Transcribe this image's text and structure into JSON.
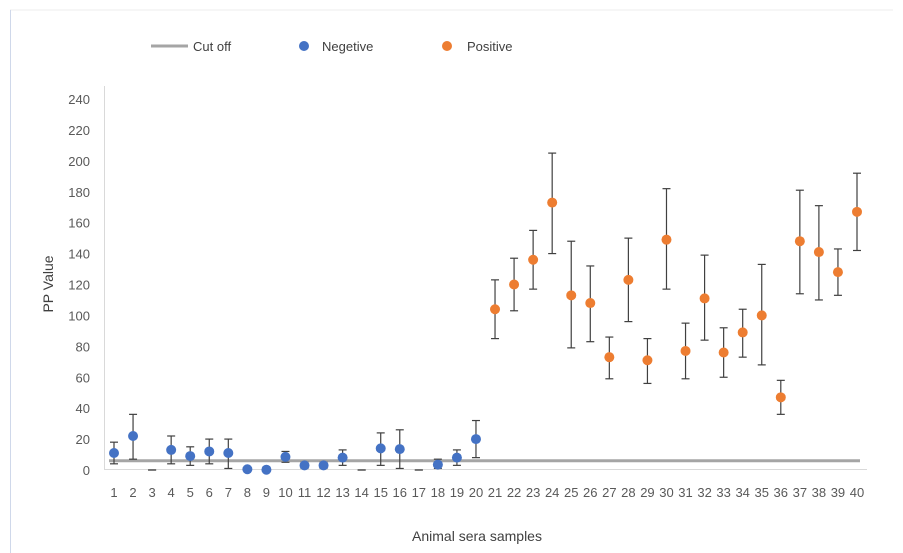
{
  "chart_data": {
    "type": "scatter",
    "xlabel": "Animal sera samples",
    "ylabel": "PP Value",
    "ylim": [
      0,
      240
    ],
    "y_ticks": [
      "0",
      "20",
      "40",
      "60",
      "80",
      "100",
      "120",
      "140",
      "160",
      "180",
      "200",
      "220",
      "240"
    ],
    "x_ticks": [
      "1",
      "2",
      "3",
      "4",
      "5",
      "6",
      "7",
      "8",
      "9",
      "10",
      "11",
      "12",
      "13",
      "14",
      "15",
      "16",
      "17",
      "18",
      "19",
      "20",
      "21",
      "22",
      "23",
      "24",
      "25",
      "26",
      "27",
      "28",
      "29",
      "30",
      "31",
      "32",
      "33",
      "34",
      "35",
      "36",
      "37",
      "38",
      "39",
      "40"
    ],
    "grid": false,
    "legend_position": "top",
    "legend": {
      "cutoff_label": "Cut off",
      "negative_label": "Negetive",
      "positive_label": "Positive"
    },
    "cutoff": {
      "value": 6,
      "color": "#a5a5a5"
    },
    "series": [
      {
        "name": "Negetive",
        "color": "#4472c4",
        "points": [
          {
            "x": 1,
            "y": 11,
            "lo": 4,
            "hi": 18
          },
          {
            "x": 2,
            "y": 22,
            "lo": 7,
            "hi": 36
          },
          {
            "x": 3,
            "y": 0,
            "lo": 0,
            "hi": 0
          },
          {
            "x": 4,
            "y": 13,
            "lo": 4,
            "hi": 22
          },
          {
            "x": 5,
            "y": 9,
            "lo": 3,
            "hi": 15
          },
          {
            "x": 6,
            "y": 12,
            "lo": 4,
            "hi": 20
          },
          {
            "x": 7,
            "y": 11,
            "lo": 1,
            "hi": 20
          },
          {
            "x": 8,
            "y": 0.5,
            "lo": 0,
            "hi": 1
          },
          {
            "x": 9,
            "y": 0.2,
            "lo": 0,
            "hi": 0.5
          },
          {
            "x": 10,
            "y": 8.5,
            "lo": 5,
            "hi": 12
          },
          {
            "x": 11,
            "y": 3,
            "lo": 1,
            "hi": 5
          },
          {
            "x": 12,
            "y": 3,
            "lo": 1,
            "hi": 5
          },
          {
            "x": 13,
            "y": 8,
            "lo": 3,
            "hi": 13
          },
          {
            "x": 14,
            "y": 0,
            "lo": 0,
            "hi": 0
          },
          {
            "x": 15,
            "y": 14,
            "lo": 3,
            "hi": 24
          },
          {
            "x": 16,
            "y": 13.5,
            "lo": 1,
            "hi": 26
          },
          {
            "x": 17,
            "y": 0,
            "lo": 0,
            "hi": 0
          },
          {
            "x": 18,
            "y": 3.5,
            "lo": 1,
            "hi": 7
          },
          {
            "x": 19,
            "y": 8,
            "lo": 3,
            "hi": 13
          },
          {
            "x": 20,
            "y": 20,
            "lo": 8,
            "hi": 32
          }
        ]
      },
      {
        "name": "Positive",
        "color": "#ed7d31",
        "points": [
          {
            "x": 21,
            "y": 104,
            "lo": 85,
            "hi": 123
          },
          {
            "x": 22,
            "y": 120,
            "lo": 103,
            "hi": 137
          },
          {
            "x": 23,
            "y": 136,
            "lo": 117,
            "hi": 155
          },
          {
            "x": 24,
            "y": 173,
            "lo": 140,
            "hi": 205
          },
          {
            "x": 25,
            "y": 113,
            "lo": 79,
            "hi": 148
          },
          {
            "x": 26,
            "y": 108,
            "lo": 83,
            "hi": 132
          },
          {
            "x": 27,
            "y": 73,
            "lo": 59,
            "hi": 86
          },
          {
            "x": 28,
            "y": 123,
            "lo": 96,
            "hi": 150
          },
          {
            "x": 29,
            "y": 71,
            "lo": 56,
            "hi": 85
          },
          {
            "x": 30,
            "y": 149,
            "lo": 117,
            "hi": 182
          },
          {
            "x": 31,
            "y": 77,
            "lo": 59,
            "hi": 95
          },
          {
            "x": 32,
            "y": 111,
            "lo": 84,
            "hi": 139
          },
          {
            "x": 33,
            "y": 76,
            "lo": 60,
            "hi": 92
          },
          {
            "x": 34,
            "y": 89,
            "lo": 73,
            "hi": 104
          },
          {
            "x": 35,
            "y": 100,
            "lo": 68,
            "hi": 133
          },
          {
            "x": 36,
            "y": 47,
            "lo": 36,
            "hi": 58
          },
          {
            "x": 37,
            "y": 148,
            "lo": 114,
            "hi": 181
          },
          {
            "x": 38,
            "y": 141,
            "lo": 110,
            "hi": 171
          },
          {
            "x": 39,
            "y": 128,
            "lo": 113,
            "hi": 143
          },
          {
            "x": 40,
            "y": 167,
            "lo": 142,
            "hi": 192
          }
        ]
      }
    ]
  }
}
